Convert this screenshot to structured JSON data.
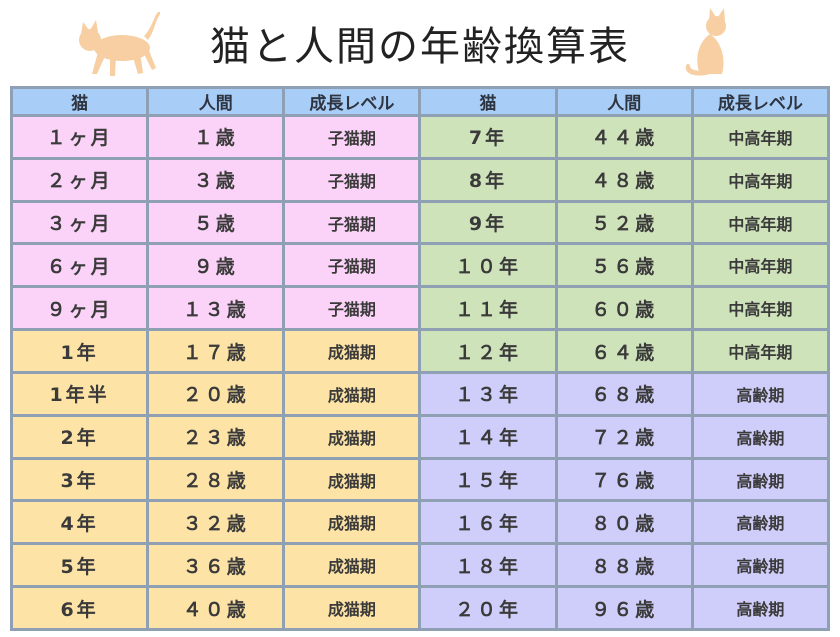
{
  "title": "猫と人間の年齢換算表",
  "headers": [
    "猫",
    "人間",
    "成長レベル",
    "猫",
    "人間",
    "成長レベル"
  ],
  "colors": {
    "header": "#a8cdf7",
    "kitten": "#fcd3f8",
    "adult": "#fde3a5",
    "middle": "#cfe3bb",
    "senior": "#cfcdf9",
    "cat_icon": "#f7cfa3"
  },
  "left_rows": [
    {
      "cat": "１ヶ月",
      "human": "１歳",
      "level": "子猫期",
      "group": "pink"
    },
    {
      "cat": "２ヶ月",
      "human": "３歳",
      "level": "子猫期",
      "group": "pink"
    },
    {
      "cat": "３ヶ月",
      "human": "５歳",
      "level": "子猫期",
      "group": "pink"
    },
    {
      "cat": "６ヶ月",
      "human": "９歳",
      "level": "子猫期",
      "group": "pink"
    },
    {
      "cat": "９ヶ月",
      "human": "１３歳",
      "level": "子猫期",
      "group": "pink"
    },
    {
      "cat": "1年",
      "human": "１７歳",
      "level": "成猫期",
      "group": "yellow"
    },
    {
      "cat": "1年半",
      "human": "２０歳",
      "level": "成猫期",
      "group": "yellow"
    },
    {
      "cat": "2年",
      "human": "２３歳",
      "level": "成猫期",
      "group": "yellow"
    },
    {
      "cat": "3年",
      "human": "２８歳",
      "level": "成猫期",
      "group": "yellow"
    },
    {
      "cat": "4年",
      "human": "３２歳",
      "level": "成猫期",
      "group": "yellow"
    },
    {
      "cat": "5年",
      "human": "３６歳",
      "level": "成猫期",
      "group": "yellow"
    },
    {
      "cat": "6年",
      "human": "４０歳",
      "level": "成猫期",
      "group": "yellow"
    }
  ],
  "right_rows": [
    {
      "cat": "7年",
      "human": "４４歳",
      "level": "中高年期",
      "group": "green"
    },
    {
      "cat": "8年",
      "human": "４８歳",
      "level": "中高年期",
      "group": "green"
    },
    {
      "cat": "9年",
      "human": "５２歳",
      "level": "中高年期",
      "group": "green"
    },
    {
      "cat": "１０年",
      "human": "５６歳",
      "level": "中高年期",
      "group": "green"
    },
    {
      "cat": "１１年",
      "human": "６０歳",
      "level": "中高年期",
      "group": "green"
    },
    {
      "cat": "１２年",
      "human": "６４歳",
      "level": "中高年期",
      "group": "green"
    },
    {
      "cat": "１３年",
      "human": "６８歳",
      "level": "高齢期",
      "group": "purple"
    },
    {
      "cat": "１４年",
      "human": "７２歳",
      "level": "高齢期",
      "group": "purple"
    },
    {
      "cat": "１５年",
      "human": "７６歳",
      "level": "高齢期",
      "group": "purple"
    },
    {
      "cat": "１６年",
      "human": "８０歳",
      "level": "高齢期",
      "group": "purple"
    },
    {
      "cat": "１８年",
      "human": "８８歳",
      "level": "高齢期",
      "group": "purple"
    },
    {
      "cat": "２０年",
      "human": "９６歳",
      "level": "高齢期",
      "group": "purple"
    }
  ],
  "icons": [
    "walking-cat-icon",
    "sitting-cat-icon"
  ]
}
